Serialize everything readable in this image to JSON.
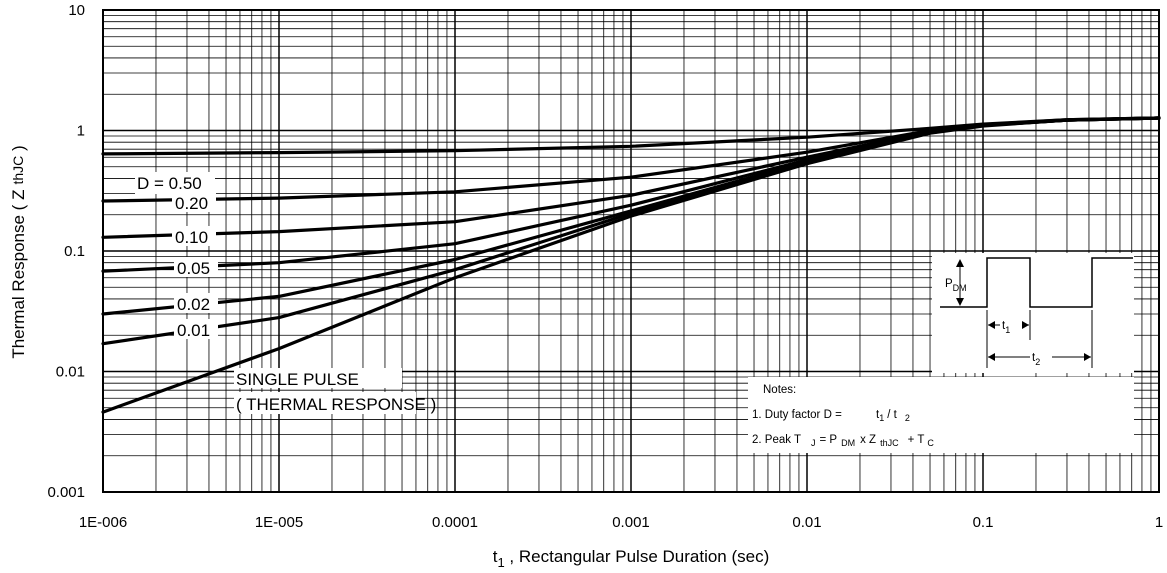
{
  "chart_data": {
    "type": "line",
    "title": "",
    "xscale": "log",
    "yscale": "log",
    "xlim": [
      1e-06,
      1
    ],
    "ylim": [
      0.001,
      10
    ],
    "grid": true,
    "xlabel": {
      "sym": "t",
      "sub": "1",
      "text": " , Rectangular Pulse Duration (sec)"
    },
    "ylabel": {
      "text": "Thermal Response ( Z",
      "sub": "thJC",
      "close": " )"
    },
    "x_ticks": [
      {
        "value": 1e-06,
        "label": "1E-006"
      },
      {
        "value": 1e-05,
        "label": "1E-005"
      },
      {
        "value": 0.0001,
        "label": "0.0001"
      },
      {
        "value": 0.001,
        "label": "0.001"
      },
      {
        "value": 0.01,
        "label": "0.01"
      },
      {
        "value": 0.1,
        "label": "0.1"
      },
      {
        "value": 1,
        "label": "1"
      }
    ],
    "y_ticks": [
      {
        "value": 0.001,
        "label": "0.001"
      },
      {
        "value": 0.01,
        "label": "0.01"
      },
      {
        "value": 0.1,
        "label": "0.1"
      },
      {
        "value": 1,
        "label": "1"
      },
      {
        "value": 10,
        "label": "10"
      }
    ],
    "series": [
      {
        "name": "D = 0.50",
        "x": [
          1e-06,
          1e-05,
          0.0001,
          0.001,
          0.01,
          0.05,
          0.1,
          0.3,
          1
        ],
        "y": [
          0.64,
          0.655,
          0.68,
          0.74,
          0.88,
          1.04,
          1.13,
          1.23,
          1.27
        ]
      },
      {
        "name": "0.20",
        "x": [
          1e-06,
          1e-05,
          0.0001,
          0.001,
          0.01,
          0.05,
          0.1,
          0.3,
          1
        ],
        "y": [
          0.26,
          0.275,
          0.31,
          0.41,
          0.66,
          1.0,
          1.12,
          1.23,
          1.27
        ]
      },
      {
        "name": "0.10",
        "x": [
          1e-06,
          1e-05,
          0.0001,
          0.001,
          0.01,
          0.05,
          0.1,
          0.3,
          1
        ],
        "y": [
          0.13,
          0.145,
          0.175,
          0.29,
          0.6,
          0.98,
          1.11,
          1.22,
          1.27
        ]
      },
      {
        "name": "0.05",
        "x": [
          1e-06,
          1e-05,
          0.0001,
          0.001,
          0.01,
          0.05,
          0.1,
          0.3,
          1
        ],
        "y": [
          0.068,
          0.08,
          0.115,
          0.24,
          0.57,
          0.97,
          1.1,
          1.22,
          1.27
        ]
      },
      {
        "name": "0.02",
        "x": [
          1e-06,
          1e-05,
          0.0001,
          0.001,
          0.01,
          0.05,
          0.1,
          0.3,
          1
        ],
        "y": [
          0.03,
          0.042,
          0.085,
          0.215,
          0.55,
          0.96,
          1.1,
          1.22,
          1.27
        ]
      },
      {
        "name": "0.01",
        "x": [
          1e-06,
          1e-05,
          0.0001,
          0.001,
          0.01,
          0.05,
          0.1,
          0.3,
          1
        ],
        "y": [
          0.017,
          0.028,
          0.07,
          0.205,
          0.54,
          0.955,
          1.1,
          1.22,
          1.27
        ]
      },
      {
        "name": "SINGLE PULSE ( THERMAL RESPONSE )",
        "x": [
          1e-06,
          1e-05,
          0.0001,
          0.001,
          0.01,
          0.05,
          0.1,
          0.3,
          1
        ],
        "y": [
          0.0046,
          0.0155,
          0.06,
          0.195,
          0.53,
          0.95,
          1.09,
          1.22,
          1.27
        ]
      }
    ],
    "curve_labels": {
      "d050": "D = 0.50",
      "d020": "0.20",
      "d010": "0.10",
      "d005": "0.05",
      "d002": "0.02",
      "d001": "0.01",
      "single_1": "SINGLE PULSE",
      "single_2": "( THERMAL RESPONSE )"
    },
    "inset": {
      "pdm": "P",
      "pdm_sub": "DM",
      "t1": "t",
      "t1_sub": "1",
      "t2": "t",
      "t2_sub": "2"
    },
    "notes": {
      "heading": "Notes:",
      "line1_text": "1. Duty factor D =",
      "line1_t1": "t",
      "line1_t1_sub": "1",
      "line1_slash": "/ t",
      "line1_t2_sub": "2",
      "line2_text": "2. Peak T",
      "line2_j": "J",
      "line2_eq": "= P",
      "line2_dm": "DM",
      "line2_x": "x  Z",
      "line2_thjc": "thJC",
      "line2_plus": "+ T",
      "line2_c": "C"
    }
  }
}
